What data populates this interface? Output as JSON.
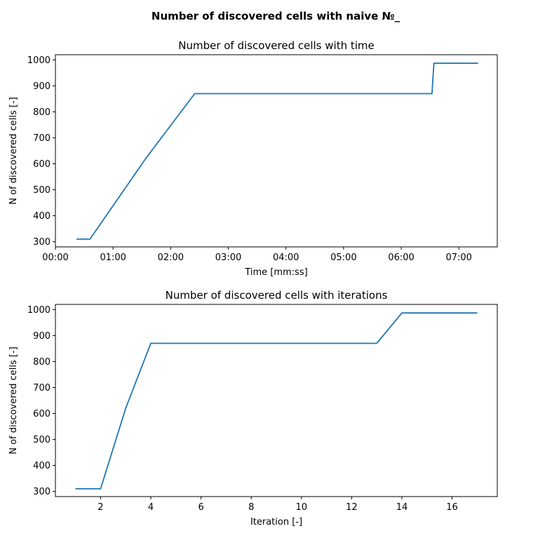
{
  "figure": {
    "suptitle": "Number of discovered cells with naive №_"
  },
  "colors": {
    "line": "#1f77b4"
  },
  "chart_data": [
    {
      "type": "line",
      "title": "Number of discovered cells with time",
      "xlabel": "Time [mm:ss]",
      "ylabel": "N of discovered cells [-]",
      "x_unit": "seconds",
      "xlim": [
        0,
        460
      ],
      "ylim": [
        280,
        1020
      ],
      "xticks": [
        0,
        60,
        120,
        180,
        240,
        300,
        360,
        420
      ],
      "xtick_labels": [
        "00:00",
        "01:00",
        "02:00",
        "03:00",
        "04:00",
        "05:00",
        "06:00",
        "07:00"
      ],
      "yticks": [
        300,
        400,
        500,
        600,
        700,
        800,
        900,
        1000
      ],
      "grid": false,
      "series": [
        {
          "x": [
            22,
            36,
            94,
            145,
            392,
            394,
            440
          ],
          "y": [
            310,
            310,
            620,
            870,
            870,
            987,
            987
          ]
        }
      ]
    },
    {
      "type": "line",
      "title": "Number of discovered cells with iterations",
      "xlabel": "Iteration [-]",
      "ylabel": "N of discovered cells [-]",
      "xlim": [
        0.2,
        17.8
      ],
      "ylim": [
        280,
        1020
      ],
      "xticks": [
        2,
        4,
        6,
        8,
        10,
        12,
        14,
        16
      ],
      "yticks": [
        300,
        400,
        500,
        600,
        700,
        800,
        900,
        1000
      ],
      "grid": false,
      "series": [
        {
          "x": [
            1,
            2,
            3,
            4,
            5,
            6,
            7,
            8,
            9,
            10,
            11,
            12,
            13,
            14,
            15,
            16,
            17
          ],
          "y": [
            310,
            310,
            620,
            870,
            870,
            870,
            870,
            870,
            870,
            870,
            870,
            870,
            870,
            987,
            987,
            987,
            987
          ]
        }
      ]
    }
  ]
}
